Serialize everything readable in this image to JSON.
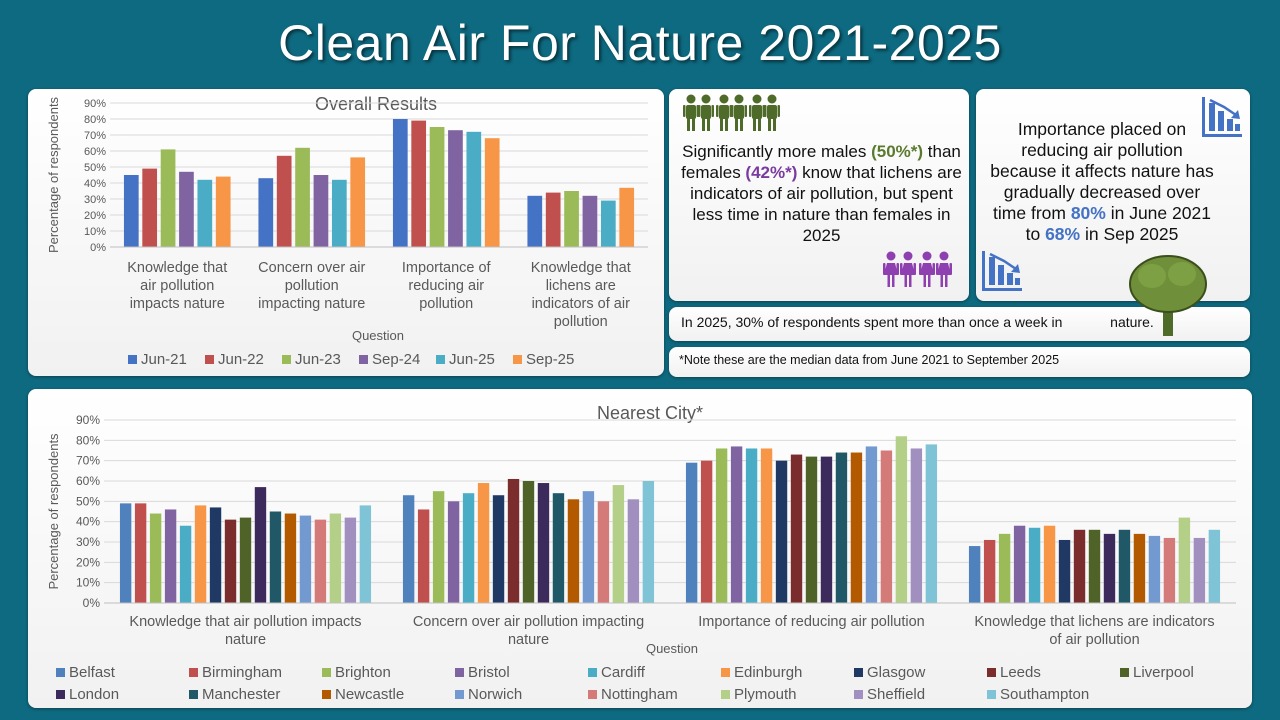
{
  "title": "Clean Air For Nature 2021-2025",
  "categories": [
    "Knowledge that air pollution impacts nature",
    "Concern over air pollution impacting nature",
    "Importance of reducing air pollution",
    "Knowledge that lichens are indicators of air pollution"
  ],
  "cards": {
    "males_text_1": "Significantly more males ",
    "males_value": "(50%*)",
    "males_text_2": " than females ",
    "females_value": "(42%*)",
    "males_text_3": " know that lichens are indicators of air pollution, but spent less time in nature than females in 2025",
    "importance_text_1": "Importance placed on reducing air pollution because it affects nature has gradually decreased over time from ",
    "importance_value_1": "80%",
    "importance_text_2": " in June 2021 to ",
    "importance_value_2": "68%",
    "importance_text_3": " in Sep 2025",
    "weekly_text_1": "In 2025, 30% of respondents spent more than once a week in",
    "weekly_text_2": "nature.",
    "note": "*Note these are the median data from June 2021 to September 2025",
    "male_icon_color": "#4f6b2a",
    "female_icon_color": "#8e3fb0",
    "tree_icon_color": "#6f8f3a"
  },
  "chart_data": [
    {
      "type": "bar",
      "title": "Overall Results",
      "xlabel": "Question",
      "ylabel": "Percentage of respondents",
      "ylim": [
        0,
        90
      ],
      "yticks": [
        "0%",
        "10%",
        "20%",
        "30%",
        "40%",
        "50%",
        "60%",
        "70%",
        "80%",
        "90%"
      ],
      "legend_position": "bottom",
      "categories": [
        [
          "Knowledge that",
          "air pollution",
          "impacts nature"
        ],
        [
          "Concern over air",
          "pollution",
          "impacting nature"
        ],
        [
          "Importance of",
          "reducing air",
          "pollution"
        ],
        [
          "Knowledge that",
          "lichens are",
          "indicators of air",
          "pollution"
        ]
      ],
      "series": [
        {
          "name": "Jun-21",
          "color": "#4472c4",
          "values": [
            45,
            43,
            80,
            32
          ]
        },
        {
          "name": "Jun-22",
          "color": "#c0504d",
          "values": [
            49,
            57,
            79,
            34
          ]
        },
        {
          "name": "Jun-23",
          "color": "#9bbb59",
          "values": [
            61,
            62,
            75,
            35
          ]
        },
        {
          "name": "Sep-24",
          "color": "#8064a2",
          "values": [
            47,
            45,
            73,
            32
          ]
        },
        {
          "name": "Jun-25",
          "color": "#4bacc6",
          "values": [
            42,
            42,
            72,
            29
          ]
        },
        {
          "name": "Sep-25",
          "color": "#f79646",
          "values": [
            44,
            56,
            68,
            37
          ]
        }
      ]
    },
    {
      "type": "bar",
      "title": "Nearest City*",
      "xlabel": "Question",
      "ylabel": "Percentage of respondents",
      "ylim": [
        0,
        90
      ],
      "yticks": [
        "0%",
        "10%",
        "20%",
        "30%",
        "40%",
        "50%",
        "60%",
        "70%",
        "80%",
        "90%"
      ],
      "legend_position": "bottom",
      "categories": [
        [
          "Knowledge that air pollution impacts",
          "nature"
        ],
        [
          "Concern over air pollution impacting",
          "nature"
        ],
        [
          "Importance of reducing air pollution"
        ],
        [
          "Knowledge that lichens are indicators",
          "of air pollution"
        ]
      ],
      "series": [
        {
          "name": "Belfast",
          "color": "#4f81bd",
          "values": [
            49,
            53,
            69,
            28
          ]
        },
        {
          "name": "Birmingham",
          "color": "#c0504d",
          "values": [
            49,
            46,
            70,
            31
          ]
        },
        {
          "name": "Brighton",
          "color": "#9bbb59",
          "values": [
            44,
            55,
            76,
            34
          ]
        },
        {
          "name": "Bristol",
          "color": "#8064a2",
          "values": [
            46,
            50,
            77,
            38
          ]
        },
        {
          "name": "Cardiff",
          "color": "#4bacc6",
          "values": [
            38,
            54,
            76,
            37
          ]
        },
        {
          "name": "Edinburgh",
          "color": "#f79646",
          "values": [
            48,
            59,
            76,
            38
          ]
        },
        {
          "name": "Glasgow",
          "color": "#1f3864",
          "values": [
            47,
            53,
            70,
            31
          ]
        },
        {
          "name": "Leeds",
          "color": "#7b2c2c",
          "values": [
            41,
            61,
            73,
            36
          ]
        },
        {
          "name": "Liverpool",
          "color": "#4f6228",
          "values": [
            42,
            60,
            72,
            36
          ]
        },
        {
          "name": "London",
          "color": "#3d2a5c",
          "values": [
            57,
            59,
            72,
            34
          ]
        },
        {
          "name": "Manchester",
          "color": "#215868",
          "values": [
            45,
            54,
            74,
            36
          ]
        },
        {
          "name": "Newcastle",
          "color": "#b35a00",
          "values": [
            44,
            51,
            74,
            34
          ]
        },
        {
          "name": "Norwich",
          "color": "#7399d1",
          "values": [
            43,
            55,
            77,
            33
          ]
        },
        {
          "name": "Nottingham",
          "color": "#d47a78",
          "values": [
            41,
            50,
            75,
            32
          ]
        },
        {
          "name": "Plymouth",
          "color": "#b3cf88",
          "values": [
            44,
            58,
            82,
            42
          ]
        },
        {
          "name": "Sheffield",
          "color": "#a18fc0",
          "values": [
            42,
            51,
            76,
            32
          ]
        },
        {
          "name": "Southampton",
          "color": "#7fc4d6",
          "values": [
            48,
            60,
            78,
            36
          ]
        }
      ]
    }
  ]
}
